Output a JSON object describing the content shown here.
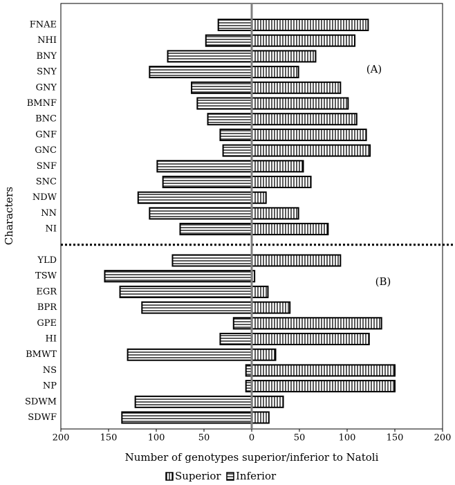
{
  "chart_data": {
    "type": "diverging-bar",
    "y_label": "Characters",
    "x_label": "Number of genotypes superior/inferior to Natoli",
    "annotations": [
      "(A)",
      "(B)"
    ],
    "categories": [
      "FNAE",
      "NHI",
      "BNY",
      "SNY",
      "GNY",
      "BMNF",
      "BNC",
      "GNF",
      "GNC",
      "SNF",
      "SNC",
      "NDW",
      "NN",
      "NI",
      null,
      "YLD",
      "TSW",
      "EGR",
      "BPR",
      "GPE",
      "HI",
      "BMWT",
      "NS",
      "NP",
      "SDWM",
      "SDWF"
    ],
    "series": [
      {
        "name": "Superior",
        "color": "#000000",
        "values": [
          122,
          108,
          67,
          49,
          93,
          101,
          110,
          120,
          124,
          54,
          62,
          15,
          49,
          80,
          null,
          93,
          3,
          17,
          40,
          136,
          123,
          25,
          150,
          150,
          33,
          18
        ]
      },
      {
        "name": "Inferior",
        "color": "#000000",
        "values": [
          -35,
          -48,
          -88,
          -107,
          -63,
          -57,
          -46,
          -33,
          -30,
          -99,
          -93,
          -119,
          -107,
          -75,
          null,
          -83,
          -154,
          -138,
          -115,
          -19,
          -33,
          -130,
          -6,
          -6,
          -122,
          -136
        ]
      }
    ],
    "xlim": [
      -200,
      200
    ],
    "xticks": [
      {
        "value": -200,
        "label": "200"
      },
      {
        "value": -150,
        "label": "150"
      },
      {
        "value": -100,
        "label": "100"
      },
      {
        "value": -50,
        "label": "50"
      },
      0,
      50,
      100,
      150,
      200
    ],
    "legend": "bottom"
  }
}
